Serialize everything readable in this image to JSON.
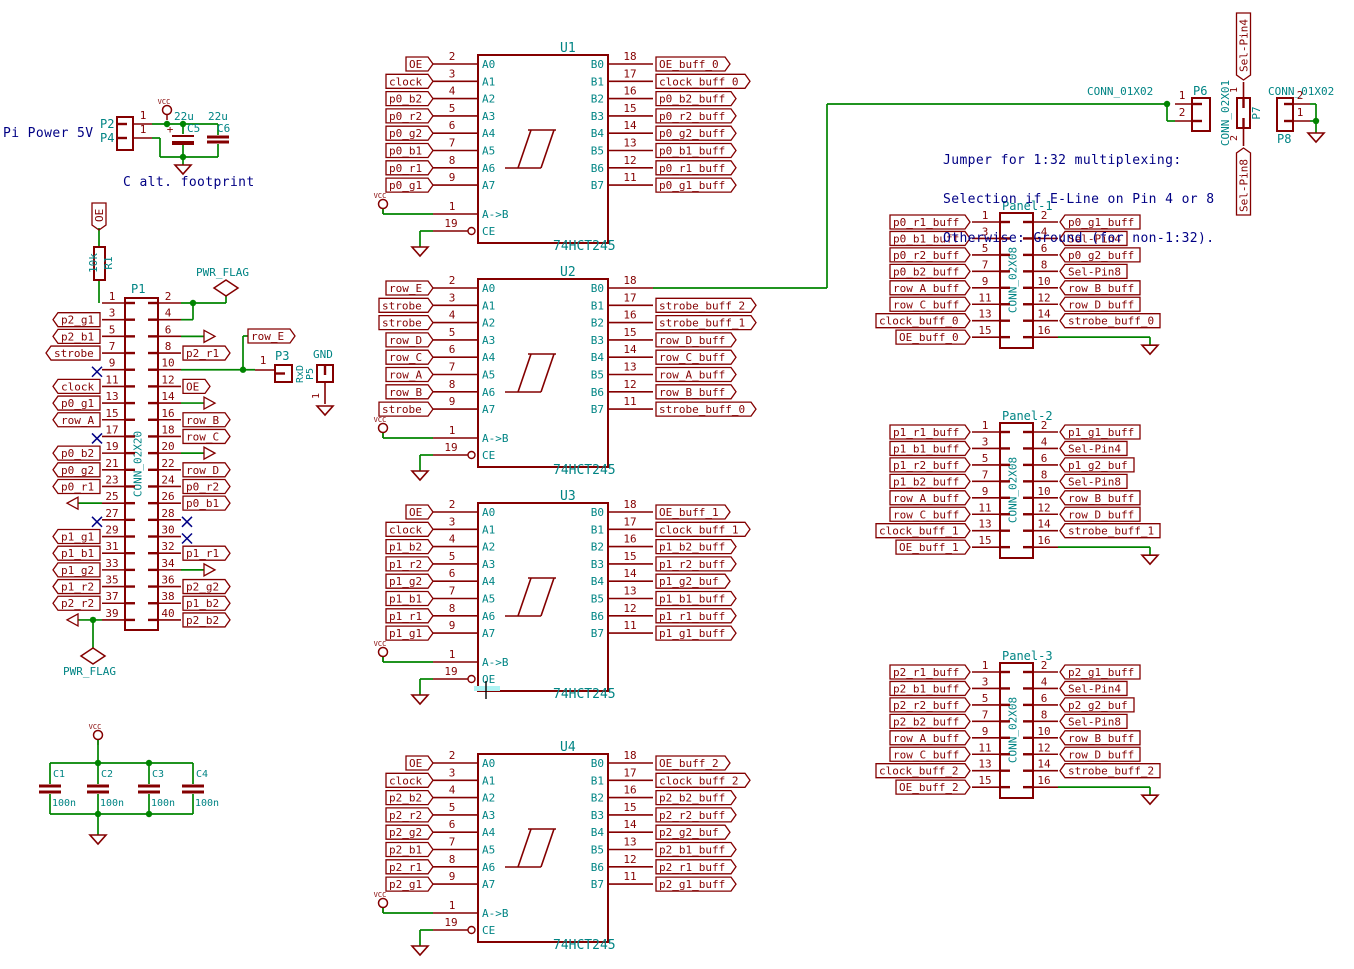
{
  "colors": {
    "symbol": "#840000",
    "wire": "#008400",
    "ref": "#008484",
    "note": "#000084",
    "nc": "#000084",
    "highlight": "#aef3f3",
    "background": "#ffffff"
  },
  "notes": {
    "pi_power": "Pi Power 5V",
    "c_alt_footprint": "C alt. footprint",
    "jumper_note": [
      "Jumper for 1:32 multiplexing:",
      "Selection if E-Line on Pin 4 or 8",
      "Otherwise: Ground (for non-1:32)."
    ]
  },
  "power_symbols": {
    "vcc": "VCC",
    "gnd_text": "GND",
    "pwr_flag": "PWR_FLAG"
  },
  "top_left": {
    "p2": {
      "ref": "P2",
      "pin": "1"
    },
    "p4": {
      "ref": "P4",
      "pin": "1"
    },
    "c5": {
      "ref": "C5",
      "value": "22u",
      "polarity": "+"
    },
    "c6": {
      "ref": "C6",
      "value": "22u"
    }
  },
  "decoupling_caps": [
    {
      "ref": "C1",
      "value": "100n"
    },
    {
      "ref": "C2",
      "value": "100n"
    },
    {
      "ref": "C3",
      "value": "100n"
    },
    {
      "ref": "C4",
      "value": "100n"
    }
  ],
  "r1": {
    "ref": "R1",
    "value": "10k",
    "net_label": "OE"
  },
  "p1": {
    "ref": "P1",
    "value": "CONN_02X20",
    "row_e_label": "row_E",
    "left_pins": [
      {
        "num": "1",
        "type": "plain"
      },
      {
        "num": "3",
        "type": "label",
        "label": "p2_g1"
      },
      {
        "num": "5",
        "type": "label",
        "label": "p2_b1"
      },
      {
        "num": "7",
        "type": "label",
        "label": "strobe"
      },
      {
        "num": "9",
        "type": "nc"
      },
      {
        "num": "11",
        "type": "label",
        "label": "clock"
      },
      {
        "num": "13",
        "type": "label",
        "label": "p0_g1"
      },
      {
        "num": "15",
        "type": "label",
        "label": "row_A"
      },
      {
        "num": "17",
        "type": "nc"
      },
      {
        "num": "19",
        "type": "label",
        "label": "p0_b2"
      },
      {
        "num": "21",
        "type": "label",
        "label": "p0_g2"
      },
      {
        "num": "23",
        "type": "label",
        "label": "p0_r1"
      },
      {
        "num": "25",
        "type": "arrow"
      },
      {
        "num": "27",
        "type": "nc"
      },
      {
        "num": "29",
        "type": "label",
        "label": "p1_g1"
      },
      {
        "num": "31",
        "type": "label",
        "label": "p1_b1"
      },
      {
        "num": "33",
        "type": "label",
        "label": "p1_g2"
      },
      {
        "num": "35",
        "type": "label",
        "label": "p1_r2"
      },
      {
        "num": "37",
        "type": "label",
        "label": "p2_r2"
      },
      {
        "num": "39",
        "type": "arrow_pwr"
      }
    ],
    "right_pins": [
      {
        "num": "2",
        "type": "pwr_junction"
      },
      {
        "num": "4",
        "type": "pwr_drop"
      },
      {
        "num": "6",
        "type": "arrow"
      },
      {
        "num": "8",
        "type": "label",
        "label": "p2_r1"
      },
      {
        "num": "10",
        "type": "rowe_p3"
      },
      {
        "num": "12",
        "type": "label",
        "label": "OE"
      },
      {
        "num": "14",
        "type": "arrow"
      },
      {
        "num": "16",
        "type": "label",
        "label": "row_B"
      },
      {
        "num": "18",
        "type": "label",
        "label": "row_C"
      },
      {
        "num": "20",
        "type": "arrow"
      },
      {
        "num": "22",
        "type": "label",
        "label": "row_D"
      },
      {
        "num": "24",
        "type": "label",
        "label": "p0_r2"
      },
      {
        "num": "26",
        "type": "label",
        "label": "p0_b1"
      },
      {
        "num": "28",
        "type": "nc"
      },
      {
        "num": "30",
        "type": "nc"
      },
      {
        "num": "32",
        "type": "label",
        "label": "p1_r1"
      },
      {
        "num": "34",
        "type": "arrow"
      },
      {
        "num": "36",
        "type": "label",
        "label": "p2_g2"
      },
      {
        "num": "38",
        "type": "label",
        "label": "p1_b2"
      },
      {
        "num": "40",
        "type": "label",
        "label": "p2_b2"
      }
    ]
  },
  "p3_group": {
    "p3_ref": "P3",
    "p3_pin": "1",
    "rot_value": "RxD",
    "rot_ref": "P5",
    "gnd_text": "GND",
    "gnd_pin": "1"
  },
  "ics": [
    {
      "ref": "U1",
      "value": "74HCT245",
      "pin1": "1",
      "ab": "A->B",
      "pin19": "19",
      "ce": "CE",
      "left": [
        {
          "pin": "2",
          "name": "A0",
          "label": "OE"
        },
        {
          "pin": "3",
          "name": "A1",
          "label": "clock"
        },
        {
          "pin": "4",
          "name": "A2",
          "label": "p0_b2"
        },
        {
          "pin": "5",
          "name": "A3",
          "label": "p0_r2"
        },
        {
          "pin": "6",
          "name": "A4",
          "label": "p0_g2"
        },
        {
          "pin": "7",
          "name": "A5",
          "label": "p0_b1"
        },
        {
          "pin": "8",
          "name": "A6",
          "label": "p0_r1"
        },
        {
          "pin": "9",
          "name": "A7",
          "label": "p0_g1"
        }
      ],
      "right": [
        {
          "pin": "18",
          "name": "B0",
          "label": "OE_buff_0"
        },
        {
          "pin": "17",
          "name": "B1",
          "label": "clock_buff_0"
        },
        {
          "pin": "16",
          "name": "B2",
          "label": "p0_b2_buff"
        },
        {
          "pin": "15",
          "name": "B3",
          "label": "p0_r2_buff"
        },
        {
          "pin": "14",
          "name": "B4",
          "label": "p0_g2_buff"
        },
        {
          "pin": "13",
          "name": "B5",
          "label": "p0_b1_buff"
        },
        {
          "pin": "12",
          "name": "B6",
          "label": "p0_r1_buff"
        },
        {
          "pin": "11",
          "name": "B7",
          "label": "p0_g1_buff"
        }
      ]
    },
    {
      "ref": "U2",
      "value": "74HCT245",
      "pin1": "1",
      "ab": "A->B",
      "pin19": "19",
      "ce": "CE",
      "left": [
        {
          "pin": "2",
          "name": "A0",
          "label": "row_E"
        },
        {
          "pin": "3",
          "name": "A1",
          "label": "strobe"
        },
        {
          "pin": "4",
          "name": "A2",
          "label": "strobe"
        },
        {
          "pin": "5",
          "name": "A3",
          "label": "row_D"
        },
        {
          "pin": "6",
          "name": "A4",
          "label": "row_C"
        },
        {
          "pin": "7",
          "name": "A5",
          "label": "row_A"
        },
        {
          "pin": "8",
          "name": "A6",
          "label": "row_B"
        },
        {
          "pin": "9",
          "name": "A7",
          "label": "strobe"
        }
      ],
      "right": [
        {
          "pin": "18",
          "name": "B0",
          "label": ""
        },
        {
          "pin": "17",
          "name": "B1",
          "label": "strobe_buff_2"
        },
        {
          "pin": "16",
          "name": "B2",
          "label": "strobe_buff_1"
        },
        {
          "pin": "15",
          "name": "B3",
          "label": "row_D_buff"
        },
        {
          "pin": "14",
          "name": "B4",
          "label": "row_C_buff"
        },
        {
          "pin": "13",
          "name": "B5",
          "label": "row_A_buff"
        },
        {
          "pin": "12",
          "name": "B6",
          "label": "row_B_buff"
        },
        {
          "pin": "11",
          "name": "B7",
          "label": "strobe_buff_0"
        }
      ]
    },
    {
      "ref": "U3",
      "value": "74HCT245",
      "pin1": "1",
      "ab": "A->B",
      "pin19": "19",
      "ce": "OE",
      "left": [
        {
          "pin": "2",
          "name": "A0",
          "label": "OE"
        },
        {
          "pin": "3",
          "name": "A1",
          "label": "clock"
        },
        {
          "pin": "4",
          "name": "A2",
          "label": "p1_b2"
        },
        {
          "pin": "5",
          "name": "A3",
          "label": "p1_r2"
        },
        {
          "pin": "6",
          "name": "A4",
          "label": "p1_g2"
        },
        {
          "pin": "7",
          "name": "A5",
          "label": "p1_b1"
        },
        {
          "pin": "8",
          "name": "A6",
          "label": "p1_r1"
        },
        {
          "pin": "9",
          "name": "A7",
          "label": "p1_g1"
        }
      ],
      "right": [
        {
          "pin": "18",
          "name": "B0",
          "label": "OE_buff_1"
        },
        {
          "pin": "17",
          "name": "B1",
          "label": "clock_buff_1"
        },
        {
          "pin": "16",
          "name": "B2",
          "label": "p1_b2_buff"
        },
        {
          "pin": "15",
          "name": "B3",
          "label": "p1_r2_buff"
        },
        {
          "pin": "14",
          "name": "B4",
          "label": "p1_g2_buf"
        },
        {
          "pin": "13",
          "name": "B5",
          "label": "p1_b1_buff"
        },
        {
          "pin": "12",
          "name": "B6",
          "label": "p1_r1_buff"
        },
        {
          "pin": "11",
          "name": "B7",
          "label": "p1_g1_buff"
        }
      ]
    },
    {
      "ref": "U4",
      "value": "74HCT245",
      "pin1": "1",
      "ab": "A->B",
      "pin19": "19",
      "ce": "CE",
      "left": [
        {
          "pin": "2",
          "name": "A0",
          "label": "OE"
        },
        {
          "pin": "3",
          "name": "A1",
          "label": "clock"
        },
        {
          "pin": "4",
          "name": "A2",
          "label": "p2_b2"
        },
        {
          "pin": "5",
          "name": "A3",
          "label": "p2_r2"
        },
        {
          "pin": "6",
          "name": "A4",
          "label": "p2_g2"
        },
        {
          "pin": "7",
          "name": "A5",
          "label": "p2_b1"
        },
        {
          "pin": "8",
          "name": "A6",
          "label": "p2_r1"
        },
        {
          "pin": "9",
          "name": "A7",
          "label": "p2_g1"
        }
      ],
      "right": [
        {
          "pin": "18",
          "name": "B0",
          "label": "OE_buff_2"
        },
        {
          "pin": "17",
          "name": "B1",
          "label": "clock_buff_2"
        },
        {
          "pin": "16",
          "name": "B2",
          "label": "p2_b2_buff"
        },
        {
          "pin": "15",
          "name": "B3",
          "label": "p2_r2_buff"
        },
        {
          "pin": "14",
          "name": "B4",
          "label": "p2_g2_buf"
        },
        {
          "pin": "13",
          "name": "B5",
          "label": "p2_b1_buff"
        },
        {
          "pin": "12",
          "name": "B6",
          "label": "p2_r1_buff"
        },
        {
          "pin": "11",
          "name": "B7",
          "label": "p2_g1_buff"
        }
      ]
    }
  ],
  "u3_edit_artifact": {
    "text": "OE"
  },
  "panels": [
    {
      "ref": "Panel-1",
      "value": "CONN_02X08",
      "left": [
        {
          "pin": "1",
          "label": "p0_r1_buff"
        },
        {
          "pin": "3",
          "label": "p0_b1_buff"
        },
        {
          "pin": "5",
          "label": "p0_r2_buff"
        },
        {
          "pin": "7",
          "label": "p0_b2_buff"
        },
        {
          "pin": "9",
          "label": "row_A_buff"
        },
        {
          "pin": "11",
          "label": "row_C_buff"
        },
        {
          "pin": "13",
          "label": "clock_buff_0"
        },
        {
          "pin": "15",
          "label": "OE_buff_0"
        }
      ],
      "right": [
        {
          "pin": "2",
          "label": "p0_g1_buff"
        },
        {
          "pin": "4",
          "label": "Sel-Pin4"
        },
        {
          "pin": "6",
          "label": "p0_g2_buff"
        },
        {
          "pin": "8",
          "label": "Sel-Pin8"
        },
        {
          "pin": "10",
          "label": "row_B_buff"
        },
        {
          "pin": "12",
          "label": "row_D_buff"
        },
        {
          "pin": "14",
          "label": "strobe_buff_0"
        },
        {
          "pin": "16",
          "label": ""
        }
      ]
    },
    {
      "ref": "Panel-2",
      "value": "CONN_02X08",
      "left": [
        {
          "pin": "1",
          "label": "p1_r1_buff"
        },
        {
          "pin": "3",
          "label": "p1_b1_buff"
        },
        {
          "pin": "5",
          "label": "p1_r2_buff"
        },
        {
          "pin": "7",
          "label": "p1_b2_buff"
        },
        {
          "pin": "9",
          "label": "row_A_buff"
        },
        {
          "pin": "11",
          "label": "row_C_buff"
        },
        {
          "pin": "13",
          "label": "clock_buff_1"
        },
        {
          "pin": "15",
          "label": "OE_buff_1"
        }
      ],
      "right": [
        {
          "pin": "2",
          "label": "p1_g1_buff"
        },
        {
          "pin": "4",
          "label": "Sel-Pin4"
        },
        {
          "pin": "6",
          "label": "p1_g2_buf"
        },
        {
          "pin": "8",
          "label": "Sel-Pin8"
        },
        {
          "pin": "10",
          "label": "row_B_buff"
        },
        {
          "pin": "12",
          "label": "row_D_buff"
        },
        {
          "pin": "14",
          "label": "strobe_buff_1"
        },
        {
          "pin": "16",
          "label": ""
        }
      ]
    },
    {
      "ref": "Panel-3",
      "value": "CONN_02X08",
      "left": [
        {
          "pin": "1",
          "label": "p2_r1_buff"
        },
        {
          "pin": "3",
          "label": "p2_b1_buff"
        },
        {
          "pin": "5",
          "label": "p2_r2_buff"
        },
        {
          "pin": "7",
          "label": "p2_b2_buff"
        },
        {
          "pin": "9",
          "label": "row_A_buff"
        },
        {
          "pin": "11",
          "label": "row_C_buff"
        },
        {
          "pin": "13",
          "label": "clock_buff_2"
        },
        {
          "pin": "15",
          "label": "OE_buff_2"
        }
      ],
      "right": [
        {
          "pin": "2",
          "label": "p2_g1_buff"
        },
        {
          "pin": "4",
          "label": "Sel-Pin4"
        },
        {
          "pin": "6",
          "label": "p2_g2_buf"
        },
        {
          "pin": "8",
          "label": "Sel-Pin8"
        },
        {
          "pin": "10",
          "label": "row_B_buff"
        },
        {
          "pin": "12",
          "label": "row_D_buff"
        },
        {
          "pin": "14",
          "label": "strobe_buff_2"
        },
        {
          "pin": "16",
          "label": ""
        }
      ]
    }
  ],
  "top_right": {
    "p6": {
      "ref": "P6",
      "value": "CONN_01X02",
      "pins": [
        "1",
        "2"
      ]
    },
    "p7": {
      "ref": "P7",
      "value": "CONN_02X01",
      "pins": [
        "1",
        "2"
      ],
      "label_top": "Sel-Pin4",
      "label_bottom": "Sel-Pin8"
    },
    "p8": {
      "ref": "P8",
      "value": "CONN_01X02",
      "pins": [
        "2",
        "1"
      ]
    }
  }
}
